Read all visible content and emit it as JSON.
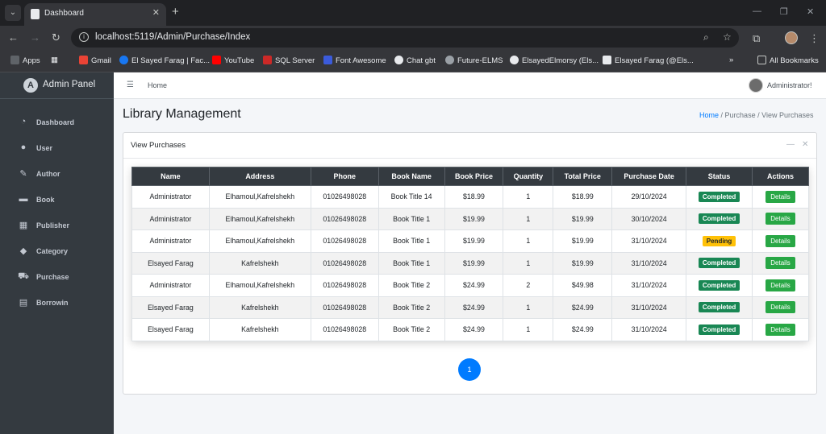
{
  "browser": {
    "tab_title": "Dashboard",
    "url": "localhost:5119/Admin/Purchase/Index",
    "bookmarks": [
      {
        "label": "Apps",
        "color": "#e8eaed"
      },
      {
        "label": "Gmail",
        "color": "#ea4335"
      },
      {
        "label": "El Sayed Farag | Fac...",
        "color": "#1877f2"
      },
      {
        "label": "YouTube",
        "color": "#ff0000"
      },
      {
        "label": "SQL Server",
        "color": "#cc2927"
      },
      {
        "label": "Font Awesome",
        "color": "#3b5bdb"
      },
      {
        "label": "Chat gbt",
        "color": "#e8eaed"
      },
      {
        "label": "Future-ELMS",
        "color": "#c4c7c5"
      },
      {
        "label": "ElsayedElmorsy (Els...",
        "color": "#e8eaed"
      },
      {
        "label": "Elsayed Farag (@Els...",
        "color": "#e8eaed"
      }
    ],
    "all_bookmarks": "All Bookmarks"
  },
  "sidebar": {
    "brand": "Admin Panel",
    "items": [
      {
        "label": "Dashboard",
        "icon": "dashboard-icon",
        "glyph": "◔"
      },
      {
        "label": "User",
        "icon": "user-icon",
        "glyph": "●"
      },
      {
        "label": "Author",
        "icon": "edit-icon",
        "glyph": "✎"
      },
      {
        "label": "Book",
        "icon": "book-icon",
        "glyph": "▬"
      },
      {
        "label": "Publisher",
        "icon": "building-icon",
        "glyph": "▦"
      },
      {
        "label": "Category",
        "icon": "tag-icon",
        "glyph": "◆"
      },
      {
        "label": "Purchase",
        "icon": "cart-icon",
        "glyph": "⛟"
      },
      {
        "label": "Borrowin",
        "icon": "book-open-icon",
        "glyph": "▤"
      }
    ]
  },
  "topnav": {
    "home": "Home",
    "user": "Administrator!"
  },
  "page": {
    "title": "Library Management",
    "breadcrumb": [
      "Home",
      "Purchase",
      "View Purchases"
    ]
  },
  "card": {
    "title": "View Purchases"
  },
  "table": {
    "columns": [
      "Name",
      "Address",
      "Phone",
      "Book Name",
      "Book Price",
      "Quantity",
      "Total Price",
      "Purchase Date",
      "Status",
      "Actions"
    ],
    "rows": [
      {
        "name": "Administrator",
        "address": "Elhamoul,Kafrelshekh",
        "phone": "01026498028",
        "book": "Book Title 14",
        "price": "$18.99",
        "qty": "1",
        "total": "$18.99",
        "date": "29/10/2024",
        "status": "Completed",
        "action": "Details"
      },
      {
        "name": "Administrator",
        "address": "Elhamoul,Kafrelshekh",
        "phone": "01026498028",
        "book": "Book Title 1",
        "price": "$19.99",
        "qty": "1",
        "total": "$19.99",
        "date": "30/10/2024",
        "status": "Completed",
        "action": "Details"
      },
      {
        "name": "Administrator",
        "address": "Elhamoul,Kafrelshekh",
        "phone": "01026498028",
        "book": "Book Title 1",
        "price": "$19.99",
        "qty": "1",
        "total": "$19.99",
        "date": "31/10/2024",
        "status": "Pending",
        "action": "Details"
      },
      {
        "name": "Elsayed Farag",
        "address": "Kafrelshekh",
        "phone": "01026498028",
        "book": "Book Title 1",
        "price": "$19.99",
        "qty": "1",
        "total": "$19.99",
        "date": "31/10/2024",
        "status": "Completed",
        "action": "Details"
      },
      {
        "name": "Administrator",
        "address": "Elhamoul,Kafrelshekh",
        "phone": "01026498028",
        "book": "Book Title 2",
        "price": "$24.99",
        "qty": "2",
        "total": "$49.98",
        "date": "31/10/2024",
        "status": "Completed",
        "action": "Details"
      },
      {
        "name": "Elsayed Farag",
        "address": "Kafrelshekh",
        "phone": "01026498028",
        "book": "Book Title 2",
        "price": "$24.99",
        "qty": "1",
        "total": "$24.99",
        "date": "31/10/2024",
        "status": "Completed",
        "action": "Details"
      },
      {
        "name": "Elsayed Farag",
        "address": "Kafrelshekh",
        "phone": "01026498028",
        "book": "Book Title 2",
        "price": "$24.99",
        "qty": "1",
        "total": "$24.99",
        "date": "31/10/2024",
        "status": "Completed",
        "action": "Details"
      }
    ]
  },
  "pagination": {
    "current": "1"
  },
  "colors": {
    "completed": "#198754",
    "pending": "#ffc107",
    "details": "#28a745",
    "primary": "#007bff",
    "sidebar": "#343a40"
  }
}
